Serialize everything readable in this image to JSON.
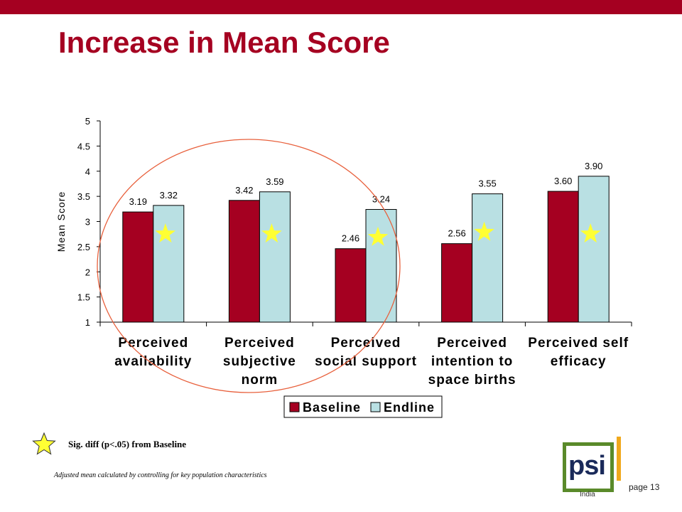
{
  "title": "Increase in Mean Score",
  "chart_data": {
    "type": "bar",
    "title": "",
    "xlabel": "",
    "ylabel": "Mean Score",
    "ylim": [
      1,
      5
    ],
    "yticks": [
      "1",
      "1.5",
      "2",
      "2.5",
      "3",
      "3.5",
      "4",
      "4.5",
      "5"
    ],
    "categories": [
      [
        "Perceived",
        "availability"
      ],
      [
        "Perceived",
        "subjective",
        "norm"
      ],
      [
        "Perceived",
        "social support"
      ],
      [
        "Perceived",
        "intention to",
        "space births"
      ],
      [
        "Perceived self",
        "efficacy"
      ]
    ],
    "series": [
      {
        "name": "Baseline",
        "color": "#a50021",
        "values": [
          3.19,
          3.42,
          2.46,
          2.56,
          3.6
        ],
        "labels": [
          "3.19",
          "3.42",
          "2.46",
          "2.56",
          "3.60"
        ]
      },
      {
        "name": "Endline",
        "color": "#b9e0e3",
        "values": [
          3.32,
          3.59,
          3.24,
          3.55,
          3.9
        ],
        "labels": [
          "3.32",
          "3.59",
          "3.24",
          "3.55",
          "3.90"
        ]
      }
    ],
    "significant": [
      true,
      true,
      true,
      true,
      true
    ],
    "legend_position": "bottom",
    "grid": false
  },
  "annotation_circle_color": "#e8603c",
  "star_color": "#ffff33",
  "sig_note": "Sig. diff (p<.05) from Baseline",
  "footnote": "Adjusted mean calculated by controlling for key population characteristics",
  "logo": {
    "text": "psi",
    "country": "India"
  },
  "page_label": "page 13"
}
